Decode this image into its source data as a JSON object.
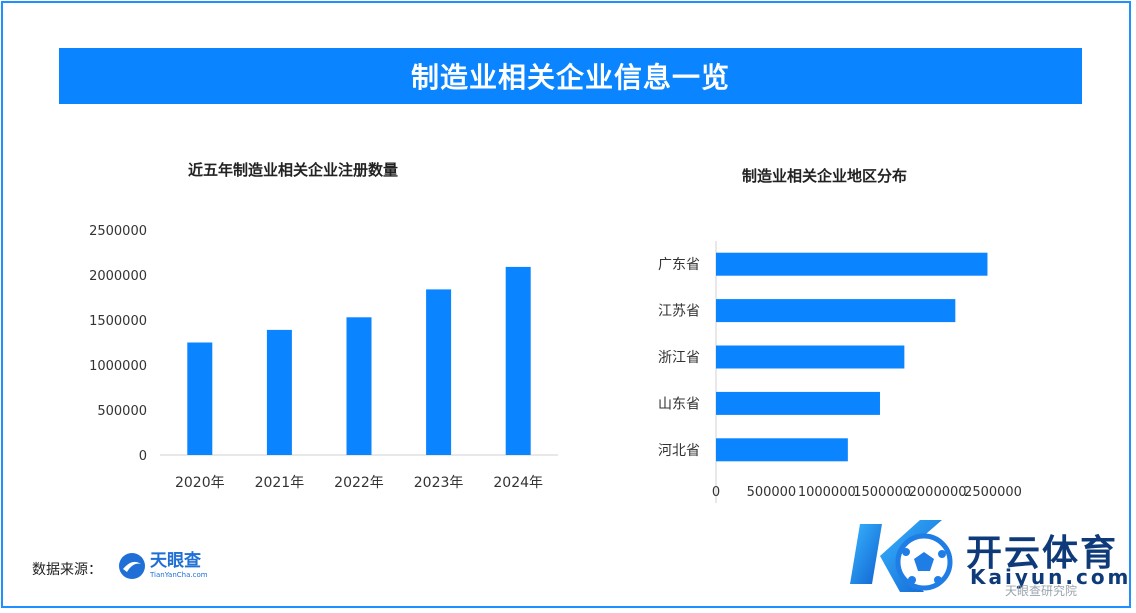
{
  "header": {
    "title": "制造业相关企业信息一览"
  },
  "chart_data": [
    {
      "type": "bar",
      "title": "近五年制造业相关企业注册数量",
      "categories": [
        "2020年",
        "2021年",
        "2022年",
        "2023年",
        "2024年"
      ],
      "values": [
        1250000,
        1390000,
        1530000,
        1840000,
        2090000
      ],
      "ylim": [
        0,
        2500000
      ],
      "yticks": [
        "0",
        "500000",
        "1000000",
        "1500000",
        "2000000",
        "2500000"
      ],
      "grid": false,
      "colors": {
        "bar": "#0a84ff"
      }
    },
    {
      "type": "bar",
      "orientation": "horizontal",
      "title": "制造业相关企业地区分布",
      "categories": [
        "广东省",
        "江苏省",
        "浙江省",
        "山东省",
        "河北省"
      ],
      "values": [
        2450000,
        2160000,
        1700000,
        1480000,
        1190000
      ],
      "xlim": [
        0,
        2500000
      ],
      "xticks": [
        "0",
        "500000",
        "1000000",
        "1500000",
        "2000000",
        "2500000"
      ],
      "grid": false,
      "colors": {
        "bar": "#0a84ff"
      }
    }
  ],
  "footer": {
    "source_label": "数据来源：",
    "source_brand": "天眼查",
    "source_brand_sub": "TianYanCha.com",
    "logo_name": "开云体育",
    "logo_domain": "Kaiyun.com",
    "watermark": "天眼查研究院"
  },
  "colors": {
    "accent": "#0a84ff",
    "frame": "#1e90ff"
  }
}
